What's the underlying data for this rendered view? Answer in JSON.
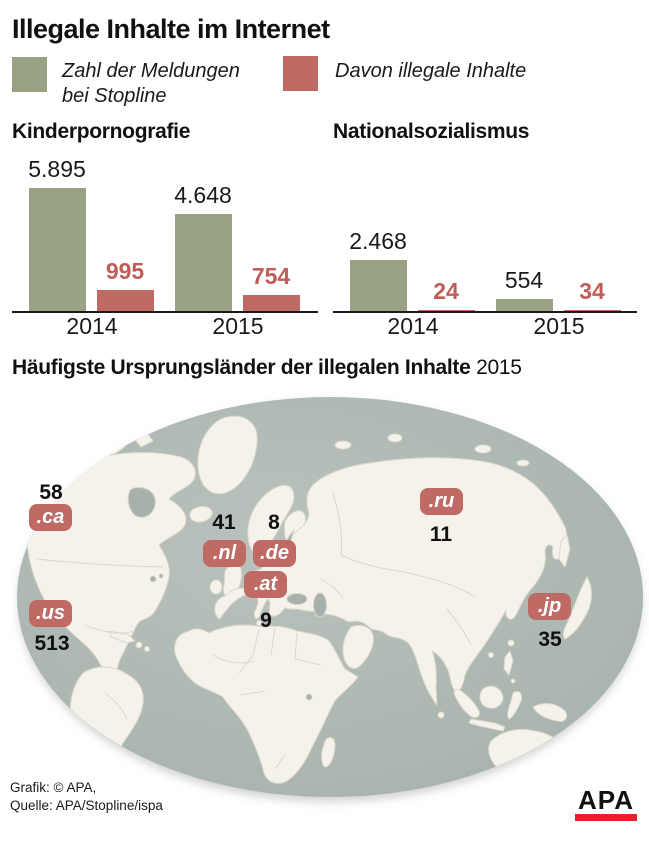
{
  "title": "Illegale Inhalte im Internet",
  "legend": {
    "reports_line1": "Zahl der Meldungen",
    "reports_line2": "bei Stopline",
    "illegal_label": "Davon illegale Inhalte"
  },
  "colors": {
    "reports": "#9aa284",
    "illegal": "#bf6a65",
    "illegal_text": "#bf5d59",
    "ocean": "#a9b4ae",
    "land": "#f4f2ea",
    "apa_red": "#e2242a"
  },
  "chart_data": [
    {
      "type": "bar",
      "title": "Kinderpornografie",
      "categories": [
        "2014",
        "2015"
      ],
      "ylim": [
        0,
        5895
      ],
      "grid": false,
      "series": [
        {
          "name": "Zahl der Meldungen bei Stopline",
          "values": [
            5895,
            4648
          ],
          "labels": [
            "5.895",
            "4.648"
          ]
        },
        {
          "name": "Davon illegale Inhalte",
          "values": [
            995,
            754
          ],
          "labels": [
            "995",
            "754"
          ]
        }
      ]
    },
    {
      "type": "bar",
      "title": "Nationalsozialismus",
      "categories": [
        "2014",
        "2015"
      ],
      "ylim": [
        0,
        5895
      ],
      "grid": false,
      "series": [
        {
          "name": "Zahl der Meldungen bei Stopline",
          "values": [
            2468,
            554
          ],
          "labels": [
            "2.468",
            "554"
          ]
        },
        {
          "name": "Davon illegale Inhalte",
          "values": [
            24,
            34
          ],
          "labels": [
            "24",
            "34"
          ]
        }
      ]
    },
    {
      "type": "map",
      "title": "Häufigste Ursprungsländer der illegalen Inhalte",
      "year": "2015",
      "points": [
        {
          "id": "ca",
          "tld": ".ca",
          "value": "58"
        },
        {
          "id": "us",
          "tld": ".us",
          "value": "513"
        },
        {
          "id": "nl",
          "tld": ".nl",
          "value": "41"
        },
        {
          "id": "de",
          "tld": ".de",
          "value": "8"
        },
        {
          "id": "at",
          "tld": ".at",
          "value": "9"
        },
        {
          "id": "ru",
          "tld": ".ru",
          "value": "11"
        },
        {
          "id": "jp",
          "tld": ".jp",
          "value": "35"
        }
      ]
    }
  ],
  "footer": {
    "line1": "Grafik: © APA,",
    "line2": "Quelle: APA/Stopline/ispa",
    "logo": "APA"
  }
}
